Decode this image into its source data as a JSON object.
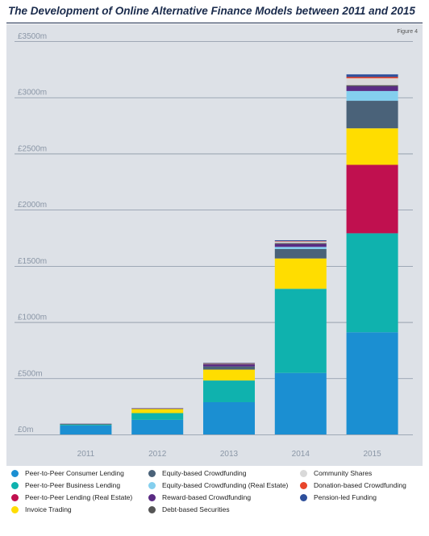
{
  "title": "The Development of Online Alternative Finance Models between 2011 and 2015",
  "figure_label": "Figure 4",
  "chart_data": {
    "type": "bar",
    "stacked": true,
    "title": "The Development of Online Alternative Finance Models between 2011 and 2015",
    "categories": [
      "2011",
      "2012",
      "2013",
      "2014",
      "2015"
    ],
    "ylim": [
      0,
      3500
    ],
    "yticks": [
      0,
      500,
      1000,
      1500,
      2000,
      2500,
      3000,
      3500
    ],
    "ytick_labels": [
      "£0m",
      "£500m",
      "£1000m",
      "£1500m",
      "£2000m",
      "£2500m",
      "£3000m",
      "£3500m"
    ],
    "grid": true,
    "legend_position": "bottom",
    "series": [
      {
        "name": "Peer-to-Peer Consumer Lending",
        "color": "#1b8fd2",
        "values": [
          80,
          130,
          287,
          547,
          909
        ]
      },
      {
        "name": "Peer-to-Peer Business Lending",
        "color": "#0fb2ae",
        "values": [
          10,
          60,
          193,
          749,
          881
        ]
      },
      {
        "name": "Peer-to-Peer Lending (Real Estate)",
        "color": "#c0104f",
        "values": [
          0,
          0,
          0,
          0,
          609
        ]
      },
      {
        "name": "Invoice Trading",
        "color": "#ffdd00",
        "values": [
          3,
          37,
          97,
          270,
          325
        ]
      },
      {
        "name": "Equity-based Crowdfunding",
        "color": "#4a6279",
        "values": [
          1,
          4,
          28,
          84,
          245
        ]
      },
      {
        "name": "Equity-based Crowdfunding (Real Estate)",
        "color": "#84cfee",
        "values": [
          0,
          0,
          0,
          19,
          87
        ]
      },
      {
        "name": "Reward-based Crowdfunding",
        "color": "#5a2b83",
        "values": [
          1,
          2,
          21,
          26,
          42
        ]
      },
      {
        "name": "Debt-based Securities",
        "color": "#555555",
        "values": [
          0,
          0,
          2,
          8,
          10
        ]
      },
      {
        "name": "Community Shares",
        "color": "#d9d9d9",
        "values": [
          0,
          0,
          3,
          13,
          61
        ]
      },
      {
        "name": "Donation-based Crowdfunding",
        "color": "#e8452b",
        "values": [
          0,
          0,
          3,
          4,
          12
        ]
      },
      {
        "name": "Pension-led Funding",
        "color": "#2e4f9b",
        "values": [
          0,
          0,
          3,
          8,
          23
        ]
      }
    ]
  },
  "legend_order": [
    "Peer-to-Peer Consumer Lending",
    "Peer-to-Peer Business Lending",
    "Peer-to-Peer Lending (Real Estate)",
    "Invoice Trading",
    "Equity-based Crowdfunding",
    "Equity-based Crowdfunding (Real Estate)",
    "Reward-based Crowdfunding",
    "Debt-based Securities",
    "Community Shares",
    "Donation-based Crowdfunding",
    "Pension-led Funding"
  ]
}
